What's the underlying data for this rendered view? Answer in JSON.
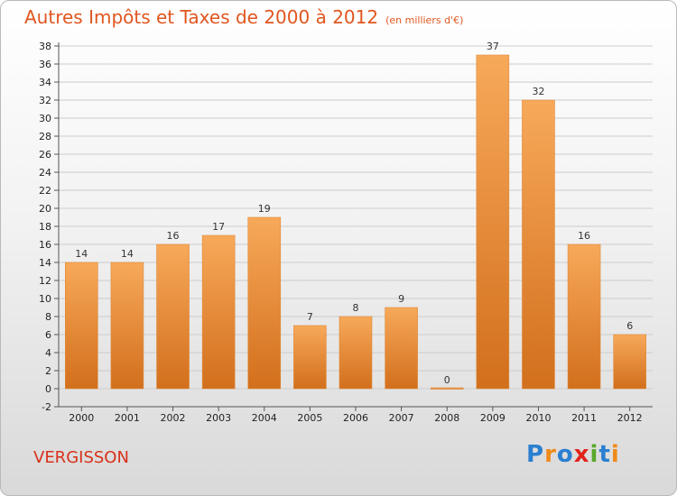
{
  "title": "Autres Impôts et Taxes de 2000 à 2012",
  "subtitle": "(en milliers d'€)",
  "place_name": "VERGISSON",
  "logo": {
    "text": "Proxiti",
    "letters": [
      {
        "ch": "P",
        "color": "#2b7fd1"
      },
      {
        "ch": "r",
        "color": "#f08a1a"
      },
      {
        "ch": "o",
        "color": "#2b7fd1"
      },
      {
        "ch": "x",
        "color": "#e2231a"
      },
      {
        "ch": "i",
        "color": "#5aa82d"
      },
      {
        "ch": "t",
        "color": "#2b7fd1"
      },
      {
        "ch": "i",
        "color": "#f08a1a"
      }
    ]
  },
  "colors": {
    "accent": "#e0561f",
    "bar_top": "#f7a95a",
    "bar_bottom": "#d26f1c",
    "grid": "#cccccc"
  },
  "chart_data": {
    "type": "bar",
    "title": "Autres Impôts et Taxes de 2000 à 2012",
    "subtitle": "(en milliers d'€)",
    "xlabel": "",
    "ylabel": "",
    "categories": [
      "2000",
      "2001",
      "2002",
      "2003",
      "2004",
      "2005",
      "2006",
      "2007",
      "2008",
      "2009",
      "2010",
      "2011",
      "2012"
    ],
    "values": [
      14,
      14,
      16,
      17,
      19,
      7,
      8,
      9,
      0,
      37,
      32,
      16,
      6
    ],
    "value_labels": [
      "14",
      "14",
      "16",
      "17",
      "19",
      "7",
      "8",
      "9",
      "0",
      "37",
      "32",
      "16",
      "6"
    ],
    "ylim": [
      -2,
      38
    ],
    "yticks": [
      -2,
      0,
      2,
      4,
      6,
      8,
      10,
      12,
      14,
      16,
      18,
      20,
      22,
      24,
      26,
      28,
      30,
      32,
      34,
      36,
      38
    ],
    "grid": true,
    "legend": "none"
  }
}
